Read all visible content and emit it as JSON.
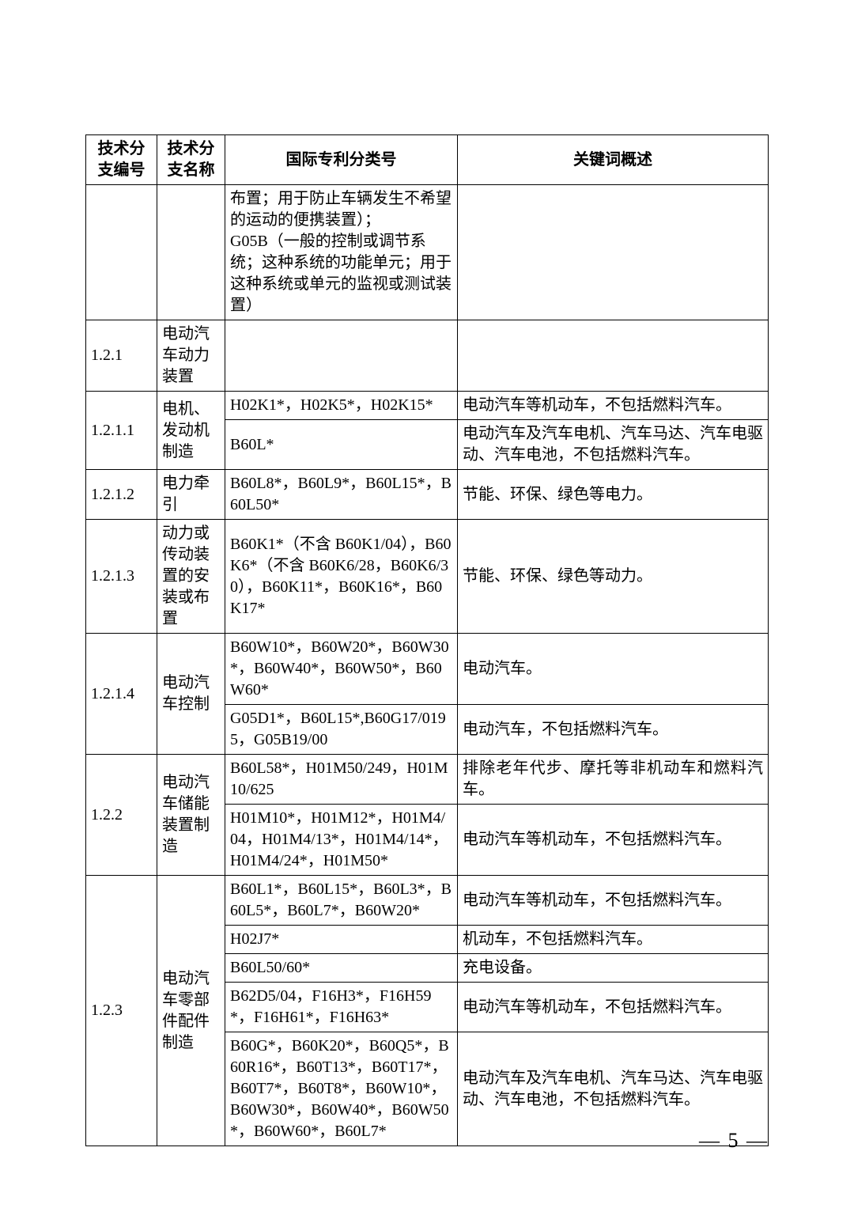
{
  "header": {
    "col_id": "技术分支编号",
    "col_name": "技术分支名称",
    "col_ipc": "国际专利分类号",
    "col_kw": "关键词概述"
  },
  "rows": {
    "intro_ipc": "布置；用于防止车辆发生不希望的运动的便携装置）；\nG05B（一般的控制或调节系统；这种系统的功能单元；用于这种系统或单元的监视或测试装置）",
    "r121": {
      "id": "1.2.1",
      "name": "电动汽车动力装置"
    },
    "r1211": {
      "id": "1.2.1.1",
      "name": "电机、发动机制造",
      "ipc1": "H02K1*，H02K5*，H02K15*",
      "kw1": "电动汽车等机动车，不包括燃料汽车。",
      "ipc2": "B60L*",
      "kw2": "电动汽车及汽车电机、汽车马达、汽车电驱动、汽车电池，不包括燃料汽车。"
    },
    "r1212": {
      "id": "1.2.1.2",
      "name": "电力牵引",
      "ipc": "B60L8*，B60L9*，B60L15*，B60L50*",
      "kw": "节能、环保、绿色等电力。"
    },
    "r1213": {
      "id": "1.2.1.3",
      "name": "动力或传动装置的安装或布置",
      "ipc": "B60K1*（不含 B60K1/04），B60K6*（不含 B60K6/28，B60K6/30），B60K11*，B60K16*，B60K17*",
      "kw": "节能、环保、绿色等动力。"
    },
    "r1214": {
      "id": "1.2.1.4",
      "name": "电动汽车控制",
      "ipc1": "B60W10*，B60W20*，B60W30*，B60W40*，B60W50*，B60W60*",
      "kw1": "电动汽车。",
      "ipc2": "G05D1*，B60L15*,B60G17/0195，G05B19/00",
      "kw2": "电动汽车，不包括燃料汽车。"
    },
    "r122": {
      "id": "1.2.2",
      "name": "电动汽车储能装置制造",
      "ipc1": "B60L58*，H01M50/249，H01M10/625",
      "kw1": "排除老年代步、摩托等非机动车和燃料汽车。",
      "ipc2": "H01M10*，H01M12*，H01M4/04，H01M4/13*，H01M4/14*，H01M4/24*，H01M50*",
      "kw2": "电动汽车等机动车，不包括燃料汽车。"
    },
    "r123": {
      "id": "1.2.3",
      "name": "电动汽车零部件配件制造",
      "ipc1": "B60L1*，B60L15*，B60L3*，B60L5*，B60L7*，B60W20*",
      "kw1": "电动汽车等机动车，不包括燃料汽车。",
      "ipc2": "H02J7*",
      "kw2": "机动车，不包括燃料汽车。",
      "ipc3": "B60L50/60*",
      "kw3": "充电设备。",
      "ipc4": "B62D5/04，F16H3*，F16H59*，F16H61*，F16H63*",
      "kw4": "电动汽车等机动车，不包括燃料汽车。",
      "ipc5": "B60G*，B60K20*，B60Q5*，B60R16*，B60T13*，B60T17*，B60T7*，B60T8*，B60W10*，B60W30*，B60W40*，B60W50*，B60W60*，B60L7*",
      "kw5": "电动汽车及汽车电机、汽车马达、汽车电驱动、汽车电池，不包括燃料汽车。"
    }
  },
  "page": "— 5 —"
}
